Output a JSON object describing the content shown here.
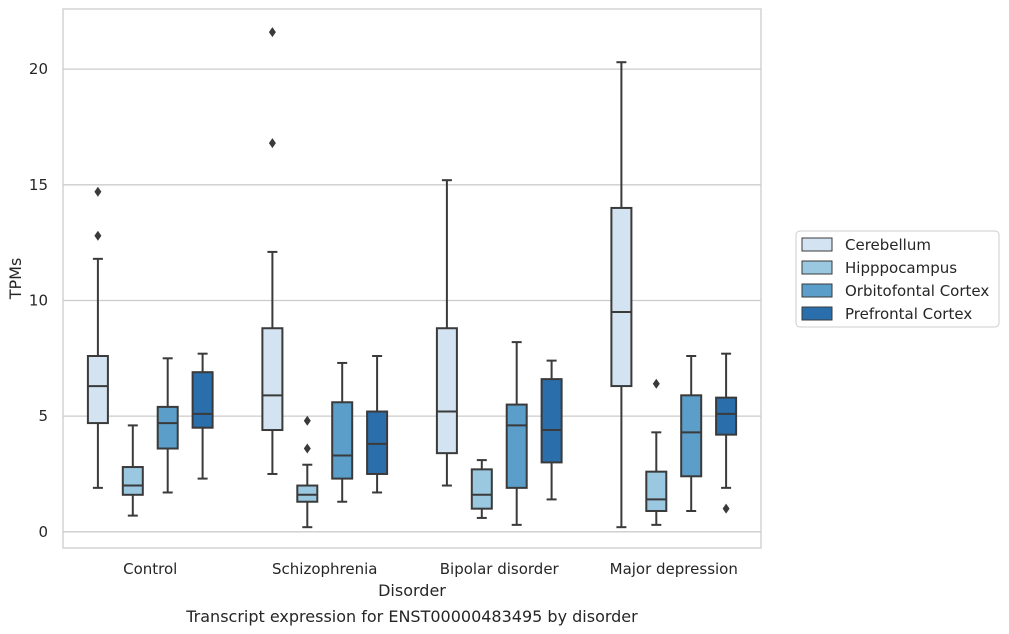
{
  "chart_data": {
    "type": "boxplot",
    "title": "",
    "caption": "Transcript expression for ENST00000483495 by disorder",
    "xlabel": "Disorder",
    "ylabel": "TPMs",
    "ylim": [
      -0.7,
      22.6
    ],
    "yticks": [
      0,
      5,
      10,
      15,
      20
    ],
    "grid": "horizontal",
    "legend_position": "right",
    "categories": [
      "Control",
      "Schizophrenia",
      "Bipolar disorder",
      "Major depression"
    ],
    "series": [
      {
        "name": "Cerebellum",
        "color": "#d4e3f2",
        "boxes": [
          {
            "whislo": 1.9,
            "q1": 4.7,
            "med": 6.3,
            "q3": 7.6,
            "whishi": 11.8,
            "fliers": [
              12.8,
              14.7
            ]
          },
          {
            "whislo": 2.5,
            "q1": 4.4,
            "med": 5.9,
            "q3": 8.8,
            "whishi": 12.1,
            "fliers": [
              16.8,
              21.6
            ]
          },
          {
            "whislo": 2.0,
            "q1": 3.4,
            "med": 5.2,
            "q3": 8.8,
            "whishi": 15.2,
            "fliers": []
          },
          {
            "whislo": 0.2,
            "q1": 6.3,
            "med": 9.5,
            "q3": 14.0,
            "whishi": 20.3,
            "fliers": []
          }
        ]
      },
      {
        "name": "Hipppocampus",
        "color": "#9ac8e0",
        "boxes": [
          {
            "whislo": 0.7,
            "q1": 1.6,
            "med": 2.0,
            "q3": 2.8,
            "whishi": 4.6,
            "fliers": []
          },
          {
            "whislo": 0.2,
            "q1": 1.3,
            "med": 1.6,
            "q3": 2.0,
            "whishi": 2.9,
            "fliers": [
              3.6,
              4.8
            ]
          },
          {
            "whislo": 0.6,
            "q1": 1.0,
            "med": 1.6,
            "q3": 2.7,
            "whishi": 3.1,
            "fliers": []
          },
          {
            "whislo": 0.3,
            "q1": 0.9,
            "med": 1.4,
            "q3": 2.6,
            "whishi": 4.3,
            "fliers": [
              6.4
            ]
          }
        ]
      },
      {
        "name": "Orbitofontal Cortex",
        "color": "#5a9ec9",
        "boxes": [
          {
            "whislo": 1.7,
            "q1": 3.6,
            "med": 4.7,
            "q3": 5.4,
            "whishi": 7.5,
            "fliers": []
          },
          {
            "whislo": 1.3,
            "q1": 2.3,
            "med": 3.3,
            "q3": 5.6,
            "whishi": 7.3,
            "fliers": []
          },
          {
            "whislo": 0.3,
            "q1": 1.9,
            "med": 4.6,
            "q3": 5.5,
            "whishi": 8.2,
            "fliers": []
          },
          {
            "whislo": 0.9,
            "q1": 2.4,
            "med": 4.3,
            "q3": 5.9,
            "whishi": 7.6,
            "fliers": []
          }
        ]
      },
      {
        "name": "Prefrontal Cortex",
        "color": "#2b6eac",
        "boxes": [
          {
            "whislo": 2.3,
            "q1": 4.5,
            "med": 5.1,
            "q3": 6.9,
            "whishi": 7.7,
            "fliers": []
          },
          {
            "whislo": 1.7,
            "q1": 2.5,
            "med": 3.8,
            "q3": 5.2,
            "whishi": 7.6,
            "fliers": []
          },
          {
            "whislo": 1.4,
            "q1": 3.0,
            "med": 4.4,
            "q3": 6.6,
            "whishi": 7.4,
            "fliers": []
          },
          {
            "whislo": 1.9,
            "q1": 4.2,
            "med": 5.1,
            "q3": 5.8,
            "whishi": 7.7,
            "fliers": [
              1.0
            ]
          }
        ]
      }
    ]
  }
}
